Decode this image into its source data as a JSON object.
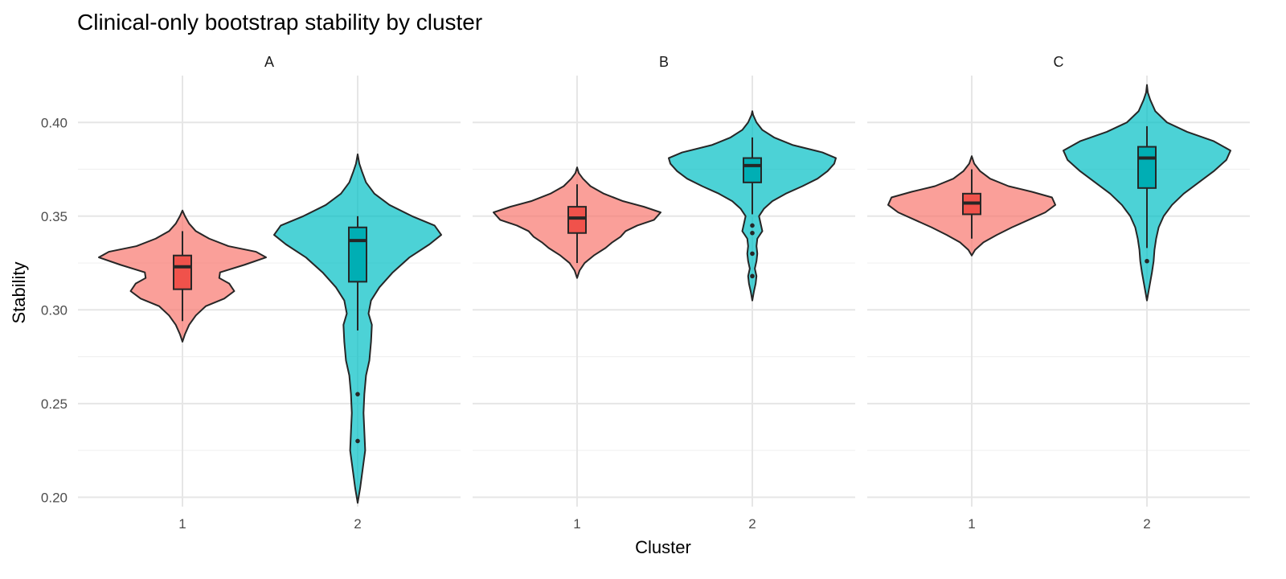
{
  "chart_data": {
    "type": "violin",
    "title": "Clinical-only bootstrap stability by cluster",
    "xlabel": "Cluster",
    "ylabel": "Stability",
    "ylim": [
      0.195,
      0.425
    ],
    "yticks": [
      0.2,
      0.25,
      0.3,
      0.35,
      0.4
    ],
    "ytick_labels": [
      "0.20",
      "0.25",
      "0.30",
      "0.35",
      "0.40"
    ],
    "categories": [
      "1",
      "2"
    ],
    "grid": true,
    "colors": {
      "1": "#F8766D",
      "2": "#00BFC4"
    },
    "box_colors": {
      "1": "#F0524B",
      "2": "#00AEB4"
    },
    "panels": [
      {
        "name": "A",
        "groups": [
          {
            "cluster": "1",
            "box": {
              "q1": 0.311,
              "median": 0.323,
              "q3": 0.329,
              "whisker_low": 0.294,
              "whisker_high": 0.342
            },
            "outliers": [],
            "density": [
              [
                0.283,
                0.0
              ],
              [
                0.287,
                0.03
              ],
              [
                0.292,
                0.08
              ],
              [
                0.297,
                0.16
              ],
              [
                0.302,
                0.28
              ],
              [
                0.306,
                0.5
              ],
              [
                0.31,
                0.62
              ],
              [
                0.314,
                0.56
              ],
              [
                0.317,
                0.44
              ],
              [
                0.32,
                0.45
              ],
              [
                0.324,
                0.74
              ],
              [
                0.328,
                1.0
              ],
              [
                0.331,
                0.88
              ],
              [
                0.334,
                0.55
              ],
              [
                0.338,
                0.32
              ],
              [
                0.342,
                0.16
              ],
              [
                0.346,
                0.08
              ],
              [
                0.35,
                0.03
              ],
              [
                0.353,
                0.0
              ]
            ]
          },
          {
            "cluster": "2",
            "box": {
              "q1": 0.315,
              "median": 0.337,
              "q3": 0.344,
              "whisker_low": 0.289,
              "whisker_high": 0.35
            },
            "outliers": [
              0.255,
              0.23
            ],
            "density": [
              [
                0.197,
                0.0
              ],
              [
                0.205,
                0.03
              ],
              [
                0.215,
                0.06
              ],
              [
                0.225,
                0.09
              ],
              [
                0.235,
                0.08
              ],
              [
                0.245,
                0.07
              ],
              [
                0.255,
                0.08
              ],
              [
                0.265,
                0.1
              ],
              [
                0.273,
                0.14
              ],
              [
                0.283,
                0.16
              ],
              [
                0.292,
                0.17
              ],
              [
                0.298,
                0.13
              ],
              [
                0.305,
                0.16
              ],
              [
                0.312,
                0.26
              ],
              [
                0.32,
                0.42
              ],
              [
                0.328,
                0.62
              ],
              [
                0.335,
                0.86
              ],
              [
                0.34,
                1.0
              ],
              [
                0.345,
                0.92
              ],
              [
                0.35,
                0.65
              ],
              [
                0.356,
                0.38
              ],
              [
                0.362,
                0.2
              ],
              [
                0.368,
                0.1
              ],
              [
                0.374,
                0.05
              ],
              [
                0.378,
                0.02
              ],
              [
                0.383,
                0.0
              ]
            ]
          }
        ]
      },
      {
        "name": "B",
        "groups": [
          {
            "cluster": "1",
            "box": {
              "q1": 0.341,
              "median": 0.349,
              "q3": 0.355,
              "whisker_low": 0.325,
              "whisker_high": 0.367
            },
            "outliers": [],
            "density": [
              [
                0.317,
                0.0
              ],
              [
                0.321,
                0.03
              ],
              [
                0.325,
                0.09
              ],
              [
                0.329,
                0.2
              ],
              [
                0.333,
                0.34
              ],
              [
                0.336,
                0.42
              ],
              [
                0.339,
                0.52
              ],
              [
                0.342,
                0.58
              ],
              [
                0.345,
                0.72
              ],
              [
                0.348,
                0.92
              ],
              [
                0.352,
                1.0
              ],
              [
                0.355,
                0.8
              ],
              [
                0.358,
                0.55
              ],
              [
                0.362,
                0.32
              ],
              [
                0.366,
                0.16
              ],
              [
                0.37,
                0.07
              ],
              [
                0.373,
                0.02
              ],
              [
                0.376,
                0.0
              ]
            ]
          },
          {
            "cluster": "2",
            "box": {
              "q1": 0.368,
              "median": 0.377,
              "q3": 0.381,
              "whisker_low": 0.351,
              "whisker_high": 0.392
            },
            "outliers": [
              0.345,
              0.341,
              0.33,
              0.318
            ],
            "density": [
              [
                0.305,
                0.0
              ],
              [
                0.31,
                0.02
              ],
              [
                0.314,
                0.04
              ],
              [
                0.318,
                0.05
              ],
              [
                0.322,
                0.03
              ],
              [
                0.326,
                0.05
              ],
              [
                0.33,
                0.06
              ],
              [
                0.334,
                0.05
              ],
              [
                0.338,
                0.06
              ],
              [
                0.342,
                0.12
              ],
              [
                0.346,
                0.1
              ],
              [
                0.35,
                0.08
              ],
              [
                0.354,
                0.14
              ],
              [
                0.358,
                0.24
              ],
              [
                0.362,
                0.4
              ],
              [
                0.366,
                0.6
              ],
              [
                0.37,
                0.78
              ],
              [
                0.374,
                0.9
              ],
              [
                0.378,
                0.98
              ],
              [
                0.381,
                1.0
              ],
              [
                0.384,
                0.84
              ],
              [
                0.388,
                0.48
              ],
              [
                0.392,
                0.26
              ],
              [
                0.396,
                0.12
              ],
              [
                0.4,
                0.05
              ],
              [
                0.404,
                0.01
              ],
              [
                0.406,
                0.0
              ]
            ]
          }
        ]
      },
      {
        "name": "C",
        "groups": [
          {
            "cluster": "1",
            "box": {
              "q1": 0.351,
              "median": 0.357,
              "q3": 0.362,
              "whisker_low": 0.338,
              "whisker_high": 0.375
            },
            "outliers": [],
            "density": [
              [
                0.329,
                0.0
              ],
              [
                0.332,
                0.04
              ],
              [
                0.336,
                0.14
              ],
              [
                0.34,
                0.3
              ],
              [
                0.344,
                0.48
              ],
              [
                0.348,
                0.68
              ],
              [
                0.352,
                0.88
              ],
              [
                0.356,
                1.0
              ],
              [
                0.36,
                0.96
              ],
              [
                0.363,
                0.72
              ],
              [
                0.366,
                0.44
              ],
              [
                0.37,
                0.22
              ],
              [
                0.374,
                0.1
              ],
              [
                0.378,
                0.03
              ],
              [
                0.382,
                0.0
              ]
            ]
          },
          {
            "cluster": "2",
            "box": {
              "q1": 0.365,
              "median": 0.381,
              "q3": 0.387,
              "whisker_low": 0.333,
              "whisker_high": 0.398
            },
            "outliers": [
              0.326
            ],
            "density": [
              [
                0.305,
                0.0
              ],
              [
                0.31,
                0.02
              ],
              [
                0.315,
                0.04
              ],
              [
                0.32,
                0.06
              ],
              [
                0.326,
                0.08
              ],
              [
                0.332,
                0.09
              ],
              [
                0.338,
                0.11
              ],
              [
                0.344,
                0.14
              ],
              [
                0.35,
                0.2
              ],
              [
                0.356,
                0.3
              ],
              [
                0.362,
                0.44
              ],
              [
                0.368,
                0.62
              ],
              [
                0.374,
                0.8
              ],
              [
                0.38,
                0.95
              ],
              [
                0.385,
                1.0
              ],
              [
                0.39,
                0.8
              ],
              [
                0.395,
                0.48
              ],
              [
                0.4,
                0.24
              ],
              [
                0.406,
                0.1
              ],
              [
                0.412,
                0.04
              ],
              [
                0.416,
                0.01
              ],
              [
                0.42,
                0.0
              ]
            ]
          }
        ]
      }
    ]
  }
}
